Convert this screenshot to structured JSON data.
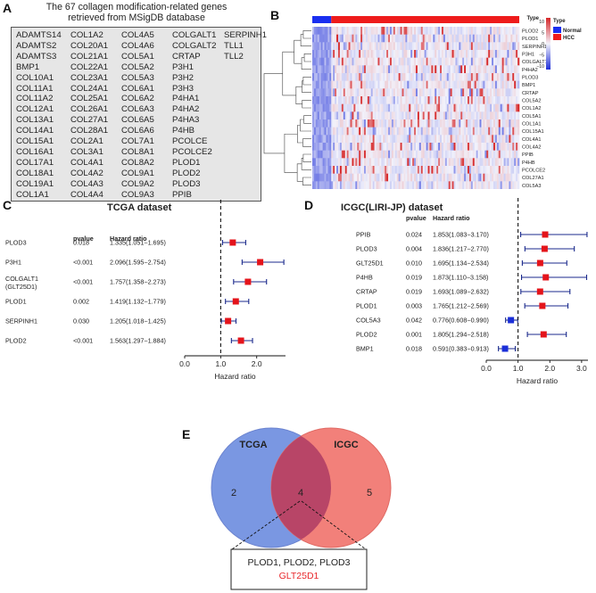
{
  "panelA": {
    "label": "A",
    "title_line1": "The 67 collagen modification-related genes",
    "title_line2": "retrieved from MSigDB database",
    "columns": [
      [
        "ADAMTS14",
        "ADAMTS2",
        "ADAMTS3",
        "BMP1",
        "COL10A1",
        "COL11A1",
        "COL11A2",
        "COL12A1",
        "COL13A1",
        "COL14A1",
        "COL15A1",
        "COL16A1",
        "COL17A1",
        "COL18A1",
        "COL19A1",
        "COL1A1"
      ],
      [
        "COL1A2",
        "COL20A1",
        "COL21A1",
        "COL22A1",
        "COL23A1",
        "COL24A1",
        "COL25A1",
        "COL26A1",
        "COL27A1",
        "COL28A1",
        "COL2A1",
        "COL3A1",
        "COL4A1",
        "COL4A2",
        "COL4A3",
        "COL4A4"
      ],
      [
        "COL4A5",
        "COL4A6",
        "COL5A1",
        "COL5A2",
        "COL5A3",
        "COL6A1",
        "COL6A2",
        "COL6A3",
        "COL6A5",
        "COL6A6",
        "COL7A1",
        "COL8A1",
        "COL8A2",
        "COL9A1",
        "COL9A2",
        "COL9A3"
      ],
      [
        "COLGALT1",
        "COLGALT2",
        "CRTAP",
        "P3H1",
        "P3H2",
        "P3H3",
        "P4HA1",
        "P4HA2",
        "P4HA3",
        "P4HB",
        "PCOLCE",
        "PCOLCE2",
        "PLOD1",
        "PLOD2",
        "PLOD3",
        "PPIB"
      ],
      [
        "SERPINH1",
        "TLL1",
        "TLL2"
      ]
    ]
  },
  "panelB": {
    "label": "B",
    "legend_type_title": "Type",
    "legend_type_items": [
      {
        "name": "Normal",
        "color": "#1a2ff0"
      },
      {
        "name": "HCC",
        "color": "#ee1c1c"
      }
    ],
    "colorbar_title": "Type",
    "colorbar_ticks": [
      "10",
      "5",
      "0",
      "−5",
      "−10"
    ],
    "genes": [
      "PLOD2",
      "PLOD1",
      "SERPINH1",
      "P3H1",
      "COLGALT1",
      "P4HA2",
      "PLOD3",
      "BMP1",
      "CRTAP",
      "COL5A2",
      "COL1A2",
      "COL5A1",
      "COL1A1",
      "COL15A1",
      "COL4A1",
      "COL4A2",
      "PPIB",
      "P4HB",
      "PCOLCE2",
      "COL27A1",
      "COL5A3"
    ],
    "colors": {
      "high": "#d62728",
      "mid": "#f2f2fb",
      "low": "#1f2fd8"
    }
  },
  "panelC": {
    "label": "C",
    "title": "TCGA dataset",
    "col_pvalue": "pvalue",
    "col_hr": "Hazard ratio",
    "xlabel": "Hazard ratio",
    "ticks": [
      "0.0",
      "1.0",
      "2.0"
    ],
    "rows": [
      {
        "gene": "PLOD3",
        "gene2": "",
        "pvalue": "0.018",
        "hr_text": "1.335(1.051−1.695)",
        "hr": 1.335,
        "lo": 1.051,
        "hi": 1.695
      },
      {
        "gene": "P3H1",
        "gene2": "",
        "pvalue": "<0.001",
        "hr_text": "2.096(1.595−2.754)",
        "hr": 2.096,
        "lo": 1.595,
        "hi": 2.754
      },
      {
        "gene": "COLGALT1",
        "gene2": "(GLT25D1)",
        "pvalue": "<0.001",
        "hr_text": "1.757(1.358−2.273)",
        "hr": 1.757,
        "lo": 1.358,
        "hi": 2.273
      },
      {
        "gene": "PLOD1",
        "gene2": "",
        "pvalue": "0.002",
        "hr_text": "1.419(1.132−1.779)",
        "hr": 1.419,
        "lo": 1.132,
        "hi": 1.779
      },
      {
        "gene": "SERPINH1",
        "gene2": "",
        "pvalue": "0.030",
        "hr_text": "1.205(1.018−1.425)",
        "hr": 1.205,
        "lo": 1.018,
        "hi": 1.425
      },
      {
        "gene": "PLOD2",
        "gene2": "",
        "pvalue": "<0.001",
        "hr_text": "1.563(1.297−1.884)",
        "hr": 1.563,
        "lo": 1.297,
        "hi": 1.884
      }
    ]
  },
  "panelD": {
    "label": "D",
    "title": "ICGC(LIRI-JP) dataset",
    "col_pvalue": "pvalue",
    "col_hr": "Hazard ratio",
    "xlabel": "Hazard ratio",
    "ticks": [
      "0.0",
      "1.0",
      "2.0",
      "3.0"
    ],
    "rows": [
      {
        "gene": "PPIB",
        "pvalue": "0.024",
        "hr_text": "1.853(1.083−3.170)",
        "hr": 1.853,
        "lo": 1.083,
        "hi": 3.17
      },
      {
        "gene": "PLOD3",
        "pvalue": "0.004",
        "hr_text": "1.836(1.217−2.770)",
        "hr": 1.836,
        "lo": 1.217,
        "hi": 2.77
      },
      {
        "gene": "GLT25D1",
        "pvalue": "0.010",
        "hr_text": "1.695(1.134−2.534)",
        "hr": 1.695,
        "lo": 1.134,
        "hi": 2.534
      },
      {
        "gene": "P4HB",
        "pvalue": "0.019",
        "hr_text": "1.873(1.110−3.158)",
        "hr": 1.873,
        "lo": 1.11,
        "hi": 3.158
      },
      {
        "gene": "CRTAP",
        "pvalue": "0.019",
        "hr_text": "1.693(1.089−2.632)",
        "hr": 1.693,
        "lo": 1.089,
        "hi": 2.632
      },
      {
        "gene": "PLOD1",
        "pvalue": "0.003",
        "hr_text": "1.765(1.212−2.569)",
        "hr": 1.765,
        "lo": 1.212,
        "hi": 2.569
      },
      {
        "gene": "COL5A3",
        "pvalue": "0.042",
        "hr_text": "0.776(0.608−0.990)",
        "hr": 0.776,
        "lo": 0.608,
        "hi": 0.99
      },
      {
        "gene": "PLOD2",
        "pvalue": "0.001",
        "hr_text": "1.805(1.294−2.518)",
        "hr": 1.805,
        "lo": 1.294,
        "hi": 2.518
      },
      {
        "gene": "BMP1",
        "pvalue": "0.018",
        "hr_text": "0.591(0.383−0.913)",
        "hr": 0.591,
        "lo": 0.383,
        "hi": 0.913
      }
    ]
  },
  "panelE": {
    "label": "E",
    "left_set": "TCGA",
    "right_set": "ICGC",
    "left_only": "2",
    "overlap": "4",
    "right_only": "5",
    "callout_line1": "PLOD1, PLOD2,  PLOD3",
    "callout_line2": "GLT25D1",
    "colors": {
      "left": "#7a97e2",
      "right": "#f2807a",
      "overlap": "#b84567",
      "highlight": "#e8262a"
    }
  },
  "chart_data": [
    {
      "type": "forest",
      "title": "TCGA dataset",
      "xlabel": "Hazard ratio",
      "xlim": [
        0,
        2.8
      ],
      "reference": 1.0,
      "categories": [
        "PLOD3",
        "P3H1",
        "COLGALT1 (GLT25D1)",
        "PLOD1",
        "SERPINH1",
        "PLOD2"
      ],
      "hr": [
        1.335,
        2.096,
        1.757,
        1.419,
        1.205,
        1.563
      ],
      "lower": [
        1.051,
        1.595,
        1.358,
        1.132,
        1.018,
        1.297
      ],
      "upper": [
        1.695,
        2.754,
        2.273,
        1.779,
        1.425,
        1.884
      ],
      "pvalue": [
        "0.018",
        "<0.001",
        "<0.001",
        "0.002",
        "0.030",
        "<0.001"
      ]
    },
    {
      "type": "forest",
      "title": "ICGC(LIRI-JP) dataset",
      "xlabel": "Hazard ratio",
      "xlim": [
        0,
        3.2
      ],
      "reference": 1.0,
      "categories": [
        "PPIB",
        "PLOD3",
        "GLT25D1",
        "P4HB",
        "CRTAP",
        "PLOD1",
        "COL5A3",
        "PLOD2",
        "BMP1"
      ],
      "hr": [
        1.853,
        1.836,
        1.695,
        1.873,
        1.693,
        1.765,
        0.776,
        1.805,
        0.591
      ],
      "lower": [
        1.083,
        1.217,
        1.134,
        1.11,
        1.089,
        1.212,
        0.608,
        1.294,
        0.383
      ],
      "upper": [
        3.17,
        2.77,
        2.534,
        3.158,
        2.632,
        2.569,
        0.99,
        2.518,
        0.913
      ],
      "pvalue": [
        "0.024",
        "0.004",
        "0.010",
        "0.019",
        "0.019",
        "0.003",
        "0.042",
        "0.001",
        "0.018"
      ]
    },
    {
      "type": "venn",
      "sets": [
        "TCGA",
        "ICGC"
      ],
      "counts": {
        "TCGA_only": 2,
        "both": 4,
        "ICGC_only": 5
      },
      "shared_genes": [
        "PLOD1",
        "PLOD2",
        "PLOD3",
        "GLT25D1"
      ]
    }
  ]
}
